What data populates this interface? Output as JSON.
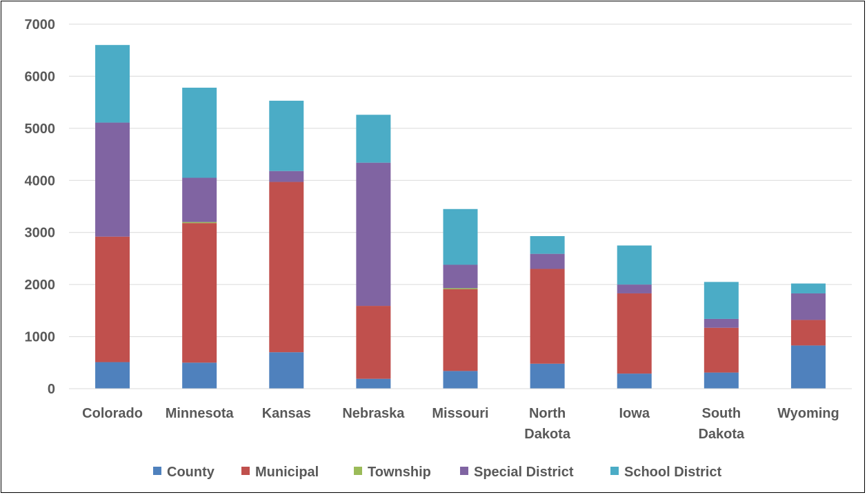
{
  "chart_data": {
    "type": "bar",
    "stacked": true,
    "title": "",
    "xlabel": "",
    "ylabel": "",
    "ylim": [
      0,
      7000
    ],
    "yticks": [
      0,
      1000,
      2000,
      3000,
      4000,
      5000,
      6000,
      7000
    ],
    "grid": true,
    "legend_position": "bottom",
    "categories": [
      [
        "Colorado"
      ],
      [
        "Minnesota"
      ],
      [
        "Kansas"
      ],
      [
        "Nebraska"
      ],
      [
        "Missouri"
      ],
      [
        "North",
        "Dakota"
      ],
      [
        "Iowa"
      ],
      [
        "South",
        "Dakota"
      ],
      [
        "Wyoming"
      ]
    ],
    "series": [
      {
        "name": "County",
        "color": "#4f81bd",
        "values": [
          510,
          500,
          700,
          190,
          340,
          480,
          290,
          310,
          830
        ]
      },
      {
        "name": "Municipal",
        "color": "#c0504d",
        "values": [
          2410,
          2680,
          3270,
          1400,
          1570,
          1820,
          1540,
          860,
          490
        ]
      },
      {
        "name": "Township",
        "color": "#9bbb59",
        "values": [
          0,
          20,
          0,
          0,
          20,
          0,
          0,
          0,
          0
        ]
      },
      {
        "name": "Special District",
        "color": "#8064a2",
        "values": [
          2190,
          850,
          210,
          2750,
          450,
          290,
          170,
          170,
          510
        ]
      },
      {
        "name": "School District",
        "color": "#4bacc6",
        "values": [
          1490,
          1730,
          1350,
          920,
          1070,
          340,
          750,
          710,
          190
        ]
      }
    ]
  }
}
